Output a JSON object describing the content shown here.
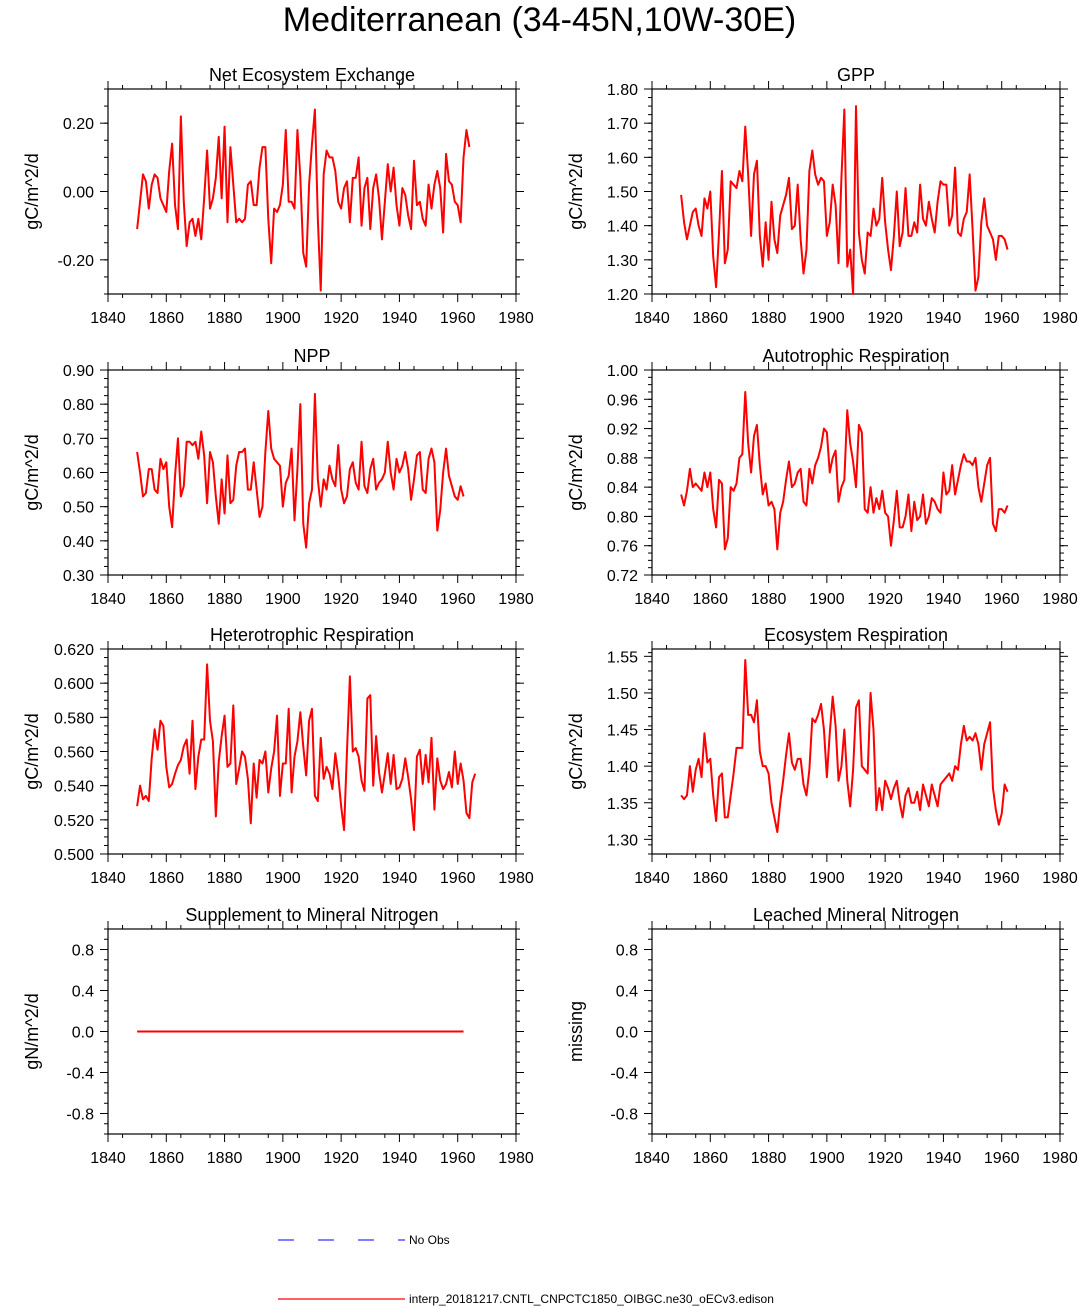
{
  "figure_title": "Mediterranean (34-45N,10W-30E)",
  "legend": {
    "obs_label": "No Obs",
    "obs_color": "#3333ff",
    "model_label": "interp_20181217.CNTL_CNPCTC1850_OIBGC.ne30_oECv3.edison",
    "model_color": "#ff0000"
  },
  "chart_data": [
    {
      "type": "line",
      "title": "Net Ecosystem Exchange",
      "ylabel": "gC/m^2/d",
      "xlim": [
        1840,
        1980
      ],
      "ylim": [
        -0.3,
        0.3
      ],
      "xticks": [
        "1840",
        "1860",
        "1880",
        "1900",
        "1920",
        "1940",
        "1960",
        "1980"
      ],
      "yticks": [
        "-0.20",
        "0.00",
        "0.20"
      ],
      "x_start": 1850,
      "values": [
        -0.11,
        -0.03,
        0.05,
        0.03,
        -0.05,
        0.02,
        0.05,
        0.04,
        -0.02,
        -0.04,
        -0.06,
        0.06,
        0.14,
        -0.04,
        -0.11,
        0.22,
        -0.03,
        -0.16,
        -0.09,
        -0.08,
        -0.13,
        -0.08,
        -0.14,
        -0.02,
        0.12,
        -0.05,
        -0.02,
        0.04,
        0.16,
        -0.02,
        0.19,
        -0.09,
        0.13,
        0.02,
        -0.09,
        -0.08,
        -0.09,
        -0.08,
        0.02,
        0.03,
        -0.04,
        -0.04,
        0.07,
        0.13,
        0.13,
        -0.08,
        -0.21,
        -0.05,
        -0.06,
        -0.04,
        0.02,
        0.18,
        -0.03,
        -0.03,
        -0.05,
        0.18,
        0.04,
        -0.18,
        -0.22,
        0.02,
        0.14,
        0.24,
        -0.08,
        -0.29,
        0.05,
        0.12,
        0.1,
        0.1,
        0.06,
        -0.03,
        -0.05,
        0.01,
        0.03,
        -0.09,
        0.04,
        0.04,
        0.1,
        -0.1,
        0.01,
        0.04,
        -0.11,
        0.01,
        0.05,
        -0.02,
        -0.14,
        -0.03,
        0.08,
        0.0,
        0.07,
        -0.04,
        -0.1,
        0.01,
        -0.01,
        -0.07,
        -0.11,
        0.09,
        -0.04,
        -0.03,
        -0.08,
        -0.1,
        0.02,
        -0.05,
        0.02,
        0.06,
        0.01,
        -0.12,
        0.11,
        0.03,
        0.02,
        -0.03,
        -0.04,
        -0.09,
        0.1,
        0.18,
        0.13
      ]
    },
    {
      "type": "line",
      "title": "GPP",
      "ylabel": "gC/m^2/d",
      "xlim": [
        1840,
        1980
      ],
      "ylim": [
        1.2,
        1.8
      ],
      "xticks": [
        "1840",
        "1860",
        "1880",
        "1900",
        "1920",
        "1940",
        "1960",
        "1980"
      ],
      "yticks": [
        "1.20",
        "1.30",
        "1.40",
        "1.50",
        "1.60",
        "1.70",
        "1.80"
      ],
      "x_start": 1850,
      "values": [
        1.49,
        1.41,
        1.36,
        1.4,
        1.44,
        1.45,
        1.4,
        1.37,
        1.48,
        1.45,
        1.5,
        1.31,
        1.22,
        1.38,
        1.56,
        1.29,
        1.33,
        1.53,
        1.52,
        1.51,
        1.56,
        1.53,
        1.69,
        1.55,
        1.37,
        1.55,
        1.59,
        1.37,
        1.28,
        1.41,
        1.3,
        1.47,
        1.36,
        1.32,
        1.43,
        1.46,
        1.49,
        1.54,
        1.39,
        1.4,
        1.52,
        1.36,
        1.26,
        1.33,
        1.56,
        1.62,
        1.55,
        1.52,
        1.54,
        1.53,
        1.37,
        1.41,
        1.52,
        1.46,
        1.29,
        1.54,
        1.74,
        1.28,
        1.33,
        1.2,
        1.75,
        1.38,
        1.3,
        1.26,
        1.38,
        1.37,
        1.45,
        1.4,
        1.42,
        1.54,
        1.41,
        1.33,
        1.27,
        1.37,
        1.5,
        1.34,
        1.38,
        1.51,
        1.37,
        1.37,
        1.41,
        1.38,
        1.52,
        1.42,
        1.4,
        1.47,
        1.42,
        1.38,
        1.47,
        1.53,
        1.52,
        1.52,
        1.4,
        1.43,
        1.57,
        1.38,
        1.37,
        1.42,
        1.44,
        1.55,
        1.39,
        1.21,
        1.25,
        1.41,
        1.48,
        1.4,
        1.38,
        1.36,
        1.3,
        1.37,
        1.37,
        1.36,
        1.33
      ]
    },
    {
      "type": "line",
      "title": "NPP",
      "ylabel": "gC/m^2/d",
      "xlim": [
        1840,
        1980
      ],
      "ylim": [
        0.3,
        0.9
      ],
      "xticks": [
        "1840",
        "1860",
        "1880",
        "1900",
        "1920",
        "1940",
        "1960",
        "1980"
      ],
      "yticks": [
        "0.30",
        "0.40",
        "0.50",
        "0.60",
        "0.70",
        "0.80",
        "0.90"
      ],
      "x_start": 1850,
      "values": [
        0.66,
        0.6,
        0.53,
        0.54,
        0.61,
        0.61,
        0.55,
        0.54,
        0.64,
        0.61,
        0.63,
        0.5,
        0.44,
        0.59,
        0.7,
        0.53,
        0.56,
        0.69,
        0.69,
        0.68,
        0.69,
        0.64,
        0.72,
        0.65,
        0.51,
        0.66,
        0.63,
        0.53,
        0.45,
        0.58,
        0.48,
        0.65,
        0.51,
        0.52,
        0.62,
        0.66,
        0.66,
        0.67,
        0.55,
        0.55,
        0.63,
        0.55,
        0.47,
        0.5,
        0.66,
        0.78,
        0.67,
        0.64,
        0.63,
        0.62,
        0.5,
        0.57,
        0.59,
        0.67,
        0.46,
        0.61,
        0.8,
        0.45,
        0.38,
        0.51,
        0.55,
        0.83,
        0.58,
        0.5,
        0.58,
        0.55,
        0.62,
        0.58,
        0.56,
        0.68,
        0.55,
        0.51,
        0.53,
        0.61,
        0.63,
        0.57,
        0.55,
        0.69,
        0.56,
        0.54,
        0.61,
        0.64,
        0.55,
        0.57,
        0.58,
        0.6,
        0.69,
        0.6,
        0.55,
        0.64,
        0.6,
        0.62,
        0.66,
        0.61,
        0.52,
        0.58,
        0.65,
        0.66,
        0.55,
        0.54,
        0.64,
        0.67,
        0.63,
        0.43,
        0.49,
        0.6,
        0.67,
        0.59,
        0.56,
        0.53,
        0.52,
        0.56,
        0.53
      ]
    },
    {
      "type": "line",
      "title": "Autotrophic Respiration",
      "ylabel": "gC/m^2/d",
      "xlim": [
        1840,
        1980
      ],
      "ylim": [
        0.72,
        1.0
      ],
      "xticks": [
        "1840",
        "1860",
        "1880",
        "1900",
        "1920",
        "1940",
        "1960",
        "1980"
      ],
      "yticks": [
        "0.72",
        "0.76",
        "0.80",
        "0.84",
        "0.88",
        "0.92",
        "0.96",
        "1.00"
      ],
      "x_start": 1850,
      "values": [
        0.83,
        0.815,
        0.835,
        0.865,
        0.84,
        0.845,
        0.84,
        0.835,
        0.86,
        0.84,
        0.86,
        0.81,
        0.785,
        0.85,
        0.845,
        0.755,
        0.77,
        0.84,
        0.835,
        0.845,
        0.88,
        0.885,
        0.97,
        0.9,
        0.86,
        0.91,
        0.925,
        0.87,
        0.83,
        0.845,
        0.815,
        0.82,
        0.81,
        0.755,
        0.805,
        0.82,
        0.85,
        0.875,
        0.84,
        0.845,
        0.86,
        0.865,
        0.82,
        0.815,
        0.865,
        0.845,
        0.87,
        0.88,
        0.895,
        0.92,
        0.915,
        0.86,
        0.88,
        0.89,
        0.82,
        0.84,
        0.85,
        0.945,
        0.9,
        0.875,
        0.84,
        0.925,
        0.915,
        0.81,
        0.805,
        0.84,
        0.805,
        0.825,
        0.81,
        0.835,
        0.805,
        0.8,
        0.76,
        0.795,
        0.835,
        0.785,
        0.785,
        0.8,
        0.83,
        0.78,
        0.82,
        0.795,
        0.8,
        0.83,
        0.79,
        0.8,
        0.825,
        0.82,
        0.81,
        0.805,
        0.86,
        0.83,
        0.835,
        0.87,
        0.83,
        0.85,
        0.87,
        0.885,
        0.875,
        0.875,
        0.87,
        0.88,
        0.84,
        0.82,
        0.845,
        0.87,
        0.88,
        0.79,
        0.78,
        0.81,
        0.81,
        0.805,
        0.815
      ]
    },
    {
      "type": "line",
      "title": "Heterotrophic Respiration",
      "ylabel": "gC/m^2/d",
      "xlim": [
        1840,
        1980
      ],
      "ylim": [
        0.5,
        0.62
      ],
      "xticks": [
        "1840",
        "1860",
        "1880",
        "1900",
        "1920",
        "1940",
        "1960",
        "1980"
      ],
      "yticks": [
        "0.500",
        "0.520",
        "0.540",
        "0.560",
        "0.580",
        "0.600",
        "0.620"
      ],
      "x_start": 1850,
      "values": [
        0.528,
        0.54,
        0.532,
        0.534,
        0.531,
        0.556,
        0.573,
        0.561,
        0.578,
        0.575,
        0.551,
        0.539,
        0.541,
        0.547,
        0.552,
        0.555,
        0.563,
        0.567,
        0.547,
        0.578,
        0.538,
        0.557,
        0.567,
        0.567,
        0.611,
        0.578,
        0.566,
        0.522,
        0.554,
        0.569,
        0.581,
        0.551,
        0.553,
        0.587,
        0.541,
        0.55,
        0.56,
        0.557,
        0.544,
        0.518,
        0.553,
        0.533,
        0.555,
        0.553,
        0.56,
        0.536,
        0.55,
        0.56,
        0.581,
        0.534,
        0.553,
        0.553,
        0.585,
        0.536,
        0.557,
        0.566,
        0.583,
        0.563,
        0.546,
        0.578,
        0.585,
        0.534,
        0.531,
        0.568,
        0.544,
        0.551,
        0.547,
        0.538,
        0.559,
        0.546,
        0.528,
        0.514,
        0.56,
        0.604,
        0.56,
        0.562,
        0.557,
        0.543,
        0.537,
        0.591,
        0.593,
        0.54,
        0.569,
        0.548,
        0.536,
        0.547,
        0.559,
        0.541,
        0.558,
        0.538,
        0.539,
        0.544,
        0.556,
        0.545,
        0.532,
        0.514,
        0.557,
        0.561,
        0.541,
        0.558,
        0.542,
        0.568,
        0.526,
        0.556,
        0.543,
        0.538,
        0.541,
        0.548,
        0.539,
        0.56,
        0.541,
        0.553,
        0.543,
        0.524,
        0.521,
        0.542,
        0.547
      ]
    },
    {
      "type": "line",
      "title": "Ecosystem Respiration",
      "ylabel": "gC/m^2/d",
      "xlim": [
        1840,
        1980
      ],
      "ylim": [
        1.28,
        1.56
      ],
      "xticks": [
        "1840",
        "1860",
        "1880",
        "1900",
        "1920",
        "1940",
        "1960",
        "1980"
      ],
      "yticks": [
        "1.30",
        "1.35",
        "1.40",
        "1.45",
        "1.50",
        "1.55"
      ],
      "x_start": 1850,
      "values": [
        1.36,
        1.355,
        1.36,
        1.4,
        1.365,
        1.395,
        1.41,
        1.385,
        1.445,
        1.405,
        1.41,
        1.36,
        1.325,
        1.385,
        1.39,
        1.33,
        1.33,
        1.36,
        1.39,
        1.425,
        1.425,
        1.425,
        1.545,
        1.47,
        1.47,
        1.46,
        1.49,
        1.42,
        1.4,
        1.4,
        1.39,
        1.35,
        1.33,
        1.31,
        1.35,
        1.38,
        1.415,
        1.445,
        1.405,
        1.395,
        1.41,
        1.41,
        1.375,
        1.36,
        1.395,
        1.465,
        1.46,
        1.47,
        1.485,
        1.45,
        1.385,
        1.445,
        1.495,
        1.455,
        1.38,
        1.4,
        1.45,
        1.38,
        1.345,
        1.395,
        1.48,
        1.49,
        1.4,
        1.395,
        1.39,
        1.5,
        1.45,
        1.34,
        1.37,
        1.34,
        1.38,
        1.37,
        1.355,
        1.37,
        1.38,
        1.35,
        1.33,
        1.36,
        1.37,
        1.35,
        1.35,
        1.365,
        1.34,
        1.375,
        1.36,
        1.345,
        1.375,
        1.36,
        1.345,
        1.375,
        1.38,
        1.385,
        1.39,
        1.38,
        1.4,
        1.395,
        1.43,
        1.455,
        1.435,
        1.44,
        1.435,
        1.445,
        1.43,
        1.395,
        1.43,
        1.445,
        1.46,
        1.37,
        1.34,
        1.32,
        1.335,
        1.375,
        1.365
      ]
    },
    {
      "type": "line",
      "title": "Supplement to Mineral Nitrogen",
      "ylabel": "gN/m^2/d",
      "xlim": [
        1840,
        1980
      ],
      "ylim": [
        -1.0,
        1.0
      ],
      "xticks": [
        "1840",
        "1860",
        "1880",
        "1900",
        "1920",
        "1940",
        "1960",
        "1980"
      ],
      "yticks": [
        "-0.8",
        "-0.4",
        "0.0",
        "0.4",
        "0.8"
      ],
      "x_start": 1850,
      "values": [
        0.0,
        0.0,
        0.0,
        0.0,
        0.0,
        0.0,
        0.0,
        0.0,
        0.0,
        0.0,
        0.0,
        0.0,
        0.0,
        0.0,
        0.0,
        0.0,
        0.0,
        0.0,
        0.0,
        0.0,
        0.0,
        0.0,
        0.0,
        0.0,
        0.0,
        0.0,
        0.0,
        0.0,
        0.0,
        0.0,
        0.0,
        0.0,
        0.0,
        0.0,
        0.0,
        0.0,
        0.0,
        0.0,
        0.0,
        0.0,
        0.0,
        0.0,
        0.0,
        0.0,
        0.0,
        0.0,
        0.0,
        0.0,
        0.0,
        0.0,
        0.0,
        0.0,
        0.0,
        0.0,
        0.0,
        0.0,
        0.0,
        0.0,
        0.0,
        0.0,
        0.0,
        0.0,
        0.0,
        0.0,
        0.0,
        0.0,
        0.0,
        0.0,
        0.0,
        0.0,
        0.0,
        0.0,
        0.0,
        0.0,
        0.0,
        0.0,
        0.0,
        0.0,
        0.0,
        0.0,
        0.0,
        0.0,
        0.0,
        0.0,
        0.0,
        0.0,
        0.0,
        0.0,
        0.0,
        0.0,
        0.0,
        0.0,
        0.0,
        0.0,
        0.0,
        0.0,
        0.0,
        0.0,
        0.0,
        0.0,
        0.0,
        0.0,
        0.0,
        0.0,
        0.0,
        0.0,
        0.0,
        0.0,
        0.0,
        0.0,
        0.0,
        0.0,
        0.0
      ]
    },
    {
      "type": "line",
      "title": "Leached Mineral Nitrogen",
      "ylabel": "missing",
      "xlim": [
        1840,
        1980
      ],
      "ylim": [
        -1.0,
        1.0
      ],
      "xticks": [
        "1840",
        "1860",
        "1880",
        "1900",
        "1920",
        "1940",
        "1960",
        "1980"
      ],
      "yticks": [
        "-0.8",
        "-0.4",
        "0.0",
        "0.4",
        "0.8"
      ],
      "x_start": 1850,
      "values": []
    }
  ]
}
